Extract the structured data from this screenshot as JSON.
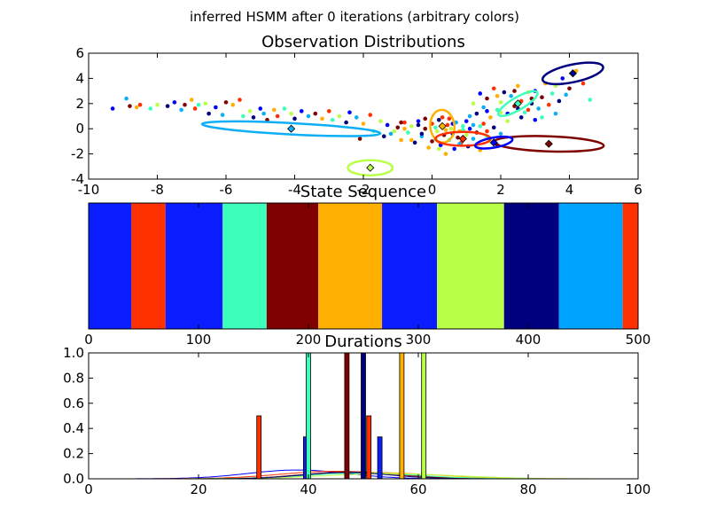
{
  "figure": {
    "suptitle": "inferred HSMM after 0 iterations (arbitrary colors)"
  },
  "chart_data": [
    {
      "type": "scatter",
      "title": "Observation Distributions",
      "xlim": [
        -10,
        6
      ],
      "ylim": [
        -4,
        6
      ],
      "xticks": [
        -10,
        -8,
        -6,
        -4,
        -2,
        0,
        2,
        4,
        6
      ],
      "yticks": [
        -4,
        -2,
        0,
        2,
        4,
        6
      ],
      "grid": false,
      "components": [
        {
          "mean": [
            -4.1,
            0.0
          ],
          "width": 5.2,
          "height": 0.9,
          "angle": -3,
          "color": "#0daef5",
          "marker_face": "#0daef5"
        },
        {
          "mean": [
            -1.8,
            -3.1
          ],
          "width": 1.3,
          "height": 1.2,
          "angle": 0,
          "color": "#b9ff47",
          "marker_face": "#b9ff47"
        },
        {
          "mean": [
            4.1,
            4.4
          ],
          "width": 1.8,
          "height": 1.4,
          "angle": 12,
          "color": "#00007f",
          "marker_face": "#00007f"
        },
        {
          "mean": [
            3.4,
            -1.2
          ],
          "width": 3.2,
          "height": 1.2,
          "angle": -2,
          "color": "#7f0000",
          "marker_face": "#7f0000"
        },
        {
          "mean": [
            0.3,
            0.2
          ],
          "width": 0.7,
          "height": 2.6,
          "angle": 5,
          "color": "#ffb000",
          "marker_face": "#ffb000"
        },
        {
          "mean": [
            0.9,
            -0.8
          ],
          "width": 1.6,
          "height": 1.1,
          "angle": 0,
          "color": "#ff3000",
          "marker_face": "#ff3000"
        },
        {
          "mean": [
            2.5,
            2.0
          ],
          "width": 1.3,
          "height": 1.0,
          "angle": 30,
          "color": "#3dffb9",
          "marker_face": "#3dffb9"
        },
        {
          "mean": [
            1.8,
            -1.1
          ],
          "width": 1.1,
          "height": 0.8,
          "angle": 10,
          "color": "#0000ff",
          "marker_face": "#0000ff"
        }
      ],
      "point_colors": [
        "#0000ff",
        "#0daef5",
        "#7f0000",
        "#ffb000",
        "#ff3000",
        "#3dffb9",
        "#b9ff47",
        "#00007f"
      ],
      "points": [
        [
          -9.3,
          1.6
        ],
        [
          -8.9,
          2.4
        ],
        [
          -8.8,
          1.8
        ],
        [
          -8.6,
          1.7
        ],
        [
          -8.5,
          1.9
        ],
        [
          -8.2,
          1.6
        ],
        [
          -8.0,
          1.9
        ],
        [
          -7.7,
          1.8
        ],
        [
          -7.5,
          2.1
        ],
        [
          -7.3,
          1.5
        ],
        [
          -7.2,
          1.9
        ],
        [
          -7.0,
          2.3
        ],
        [
          -6.9,
          1.6
        ],
        [
          -6.8,
          1.9
        ],
        [
          -6.6,
          2.0
        ],
        [
          -6.5,
          1.2
        ],
        [
          -6.3,
          1.7
        ],
        [
          -6.1,
          1.1
        ],
        [
          -6.0,
          2.1
        ],
        [
          -5.8,
          1.9
        ],
        [
          -5.6,
          2.3
        ],
        [
          -5.5,
          1.0
        ],
        [
          -5.3,
          1.4
        ],
        [
          -5.2,
          0.9
        ],
        [
          -5.0,
          1.6
        ],
        [
          -4.9,
          1.2
        ],
        [
          -4.8,
          0.7
        ],
        [
          -4.6,
          1.5
        ],
        [
          -4.5,
          1.0
        ],
        [
          -4.3,
          1.6
        ],
        [
          -4.1,
          1.2
        ],
        [
          -4.0,
          0.8
        ],
        [
          -3.8,
          1.4
        ],
        [
          -3.6,
          1.0
        ],
        [
          -3.4,
          1.2
        ],
        [
          -3.2,
          0.8
        ],
        [
          -3.0,
          1.4
        ],
        [
          -2.9,
          0.7
        ],
        [
          -2.7,
          1.0
        ],
        [
          -2.5,
          0.5
        ],
        [
          -2.4,
          1.3
        ],
        [
          -2.2,
          0.9
        ],
        [
          -2.1,
          -0.8
        ],
        [
          -2.0,
          0.4
        ],
        [
          -1.8,
          1.1
        ],
        [
          -1.7,
          -0.2
        ],
        [
          -1.5,
          0.6
        ],
        [
          -1.4,
          -0.6
        ],
        [
          -1.3,
          0.3
        ],
        [
          -1.2,
          -0.4
        ],
        [
          -1.0,
          0.1
        ],
        [
          -0.9,
          -0.9
        ],
        [
          -0.8,
          0.5
        ],
        [
          -0.7,
          -0.3
        ],
        [
          -0.6,
          0.2
        ],
        [
          -0.5,
          -1.1
        ],
        [
          -0.4,
          0.6
        ],
        [
          -0.3,
          -0.6
        ],
        [
          -0.2,
          0.0
        ],
        [
          -0.1,
          -1.5
        ],
        [
          0.0,
          0.4
        ],
        [
          0.1,
          -0.8
        ],
        [
          0.15,
          -0.2
        ],
        [
          0.2,
          0.7
        ],
        [
          0.25,
          -1.3
        ],
        [
          0.3,
          0.1
        ],
        [
          0.35,
          -0.5
        ],
        [
          0.4,
          -2.0
        ],
        [
          0.45,
          0.3
        ],
        [
          0.5,
          -0.9
        ],
        [
          0.55,
          0.0
        ],
        [
          0.6,
          -0.4
        ],
        [
          0.65,
          -1.6
        ],
        [
          0.7,
          0.5
        ],
        [
          0.75,
          -0.7
        ],
        [
          0.8,
          -0.2
        ],
        [
          0.85,
          -1.1
        ],
        [
          0.9,
          0.2
        ],
        [
          1.0,
          -0.5
        ],
        [
          1.05,
          -1.4
        ],
        [
          1.1,
          0.0
        ],
        [
          1.2,
          -0.8
        ],
        [
          1.3,
          -0.3
        ],
        [
          1.4,
          -1.7
        ],
        [
          1.5,
          0.4
        ],
        [
          1.6,
          -0.6
        ],
        [
          1.7,
          -1.0
        ],
        [
          1.8,
          0.1
        ],
        [
          1.9,
          -1.3
        ],
        [
          2.0,
          -0.4
        ],
        [
          -0.2,
          0.8
        ],
        [
          -0.6,
          -0.9
        ],
        [
          0.3,
          0.9
        ],
        [
          0.9,
          -0.1
        ],
        [
          -1.1,
          -0.2
        ],
        [
          -0.3,
          -0.4
        ],
        [
          0.6,
          0.4
        ],
        [
          1.2,
          0.3
        ],
        [
          0.0,
          -1.0
        ],
        [
          -0.8,
          0.0
        ],
        [
          0.5,
          0.8
        ],
        [
          1.4,
          0.2
        ],
        [
          0.2,
          -1.6
        ],
        [
          -0.4,
          0.3
        ],
        [
          1.0,
          0.6
        ],
        [
          0.8,
          -1.2
        ],
        [
          -0.9,
          0.5
        ],
        [
          0.4,
          -0.1
        ],
        [
          1.6,
          -0.2
        ],
        [
          0.1,
          0.1
        ],
        [
          1.2,
          2.0
        ],
        [
          1.3,
          1.2
        ],
        [
          1.4,
          2.8
        ],
        [
          1.5,
          1.7
        ],
        [
          1.6,
          2.4
        ],
        [
          1.7,
          0.9
        ],
        [
          1.8,
          3.2
        ],
        [
          1.9,
          1.5
        ],
        [
          2.0,
          2.1
        ],
        [
          2.1,
          2.9
        ],
        [
          2.2,
          1.2
        ],
        [
          2.3,
          2.6
        ],
        [
          2.4,
          1.8
        ],
        [
          2.5,
          3.4
        ],
        [
          2.6,
          2.2
        ],
        [
          2.7,
          1.3
        ],
        [
          2.8,
          2.9
        ],
        [
          2.9,
          2.0
        ],
        [
          3.0,
          3.0
        ],
        [
          3.1,
          1.6
        ],
        [
          3.2,
          2.5
        ],
        [
          3.3,
          3.6
        ],
        [
          3.4,
          1.9
        ],
        [
          3.5,
          2.8
        ],
        [
          3.6,
          3.4
        ],
        [
          3.7,
          2.2
        ],
        [
          3.8,
          4.0
        ],
        [
          3.9,
          2.7
        ],
        [
          4.0,
          3.2
        ],
        [
          4.2,
          4.6
        ],
        [
          4.4,
          3.6
        ],
        [
          4.6,
          2.3
        ],
        [
          2.2,
          0.6
        ],
        [
          2.6,
          0.9
        ],
        [
          3.0,
          0.7
        ],
        [
          1.1,
          1.0
        ],
        [
          2.4,
          3.0
        ],
        [
          1.9,
          2.6
        ],
        [
          2.8,
          1.5
        ],
        [
          3.2,
          0.9
        ],
        [
          2.0,
          1.3
        ],
        [
          2.5,
          1.6
        ],
        [
          1.6,
          1.4
        ],
        [
          3.6,
          1.2
        ],
        [
          2.9,
          2.4
        ]
      ]
    },
    {
      "type": "bar",
      "title": "State Sequence",
      "xlim": [
        0,
        500
      ],
      "xticks": [
        0,
        100,
        200,
        300,
        400,
        500
      ],
      "segments": [
        {
          "start": 0,
          "end": 39,
          "color": "#0a1dff"
        },
        {
          "start": 39,
          "end": 70,
          "color": "#ff3000"
        },
        {
          "start": 70,
          "end": 122,
          "color": "#0a1dff"
        },
        {
          "start": 122,
          "end": 162,
          "color": "#3dffb9"
        },
        {
          "start": 162,
          "end": 209,
          "color": "#7f0000"
        },
        {
          "start": 209,
          "end": 267,
          "color": "#ffb000"
        },
        {
          "start": 267,
          "end": 317,
          "color": "#0a1dff"
        },
        {
          "start": 317,
          "end": 378,
          "color": "#b9ff47"
        },
        {
          "start": 378,
          "end": 428,
          "color": "#00007f"
        },
        {
          "start": 428,
          "end": 486,
          "color": "#00a4ff"
        },
        {
          "start": 486,
          "end": 500,
          "color": "#ff3000"
        }
      ]
    },
    {
      "type": "bar",
      "title": "Durations",
      "xlim": [
        0,
        100
      ],
      "ylim": [
        0,
        1.0
      ],
      "xticks": [
        0,
        20,
        40,
        60,
        80,
        100
      ],
      "yticks": [
        0.0,
        0.2,
        0.4,
        0.6,
        0.8,
        1.0
      ],
      "ytick_labels": [
        "0.0",
        "0.2",
        "0.4",
        "0.6",
        "0.8",
        "1.0"
      ],
      "bars": [
        {
          "x": 31,
          "value": 0.5,
          "color": "#ff3000"
        },
        {
          "x": 39.5,
          "value": 0.333,
          "color": "#0a1dff"
        },
        {
          "x": 40,
          "value": 1.0,
          "color": "#3dffb9"
        },
        {
          "x": 47,
          "value": 1.0,
          "color": "#7f0000"
        },
        {
          "x": 50,
          "value": 1.0,
          "color": "#00007f"
        },
        {
          "x": 51,
          "value": 0.5,
          "color": "#ff3000"
        },
        {
          "x": 53,
          "value": 0.333,
          "color": "#0a1dff"
        },
        {
          "x": 57,
          "value": 1.0,
          "color": "#ffb000"
        },
        {
          "x": 61,
          "value": 1.0,
          "color": "#b9ff47"
        }
      ],
      "curves": [
        {
          "color": "#0000ff",
          "mean": 38,
          "sd": 9,
          "peak": 0.07
        },
        {
          "color": "#ff3000",
          "mean": 45,
          "sd": 10,
          "peak": 0.06
        },
        {
          "color": "#7f0000",
          "mean": 48,
          "sd": 9,
          "peak": 0.055
        },
        {
          "color": "#ffb000",
          "mean": 52,
          "sd": 11,
          "peak": 0.05
        },
        {
          "color": "#3dffb9",
          "mean": 50,
          "sd": 10,
          "peak": 0.045
        },
        {
          "color": "#b9ff47",
          "mean": 55,
          "sd": 12,
          "peak": 0.04
        },
        {
          "color": "#00007f",
          "mean": 47,
          "sd": 8,
          "peak": 0.05
        }
      ]
    }
  ]
}
